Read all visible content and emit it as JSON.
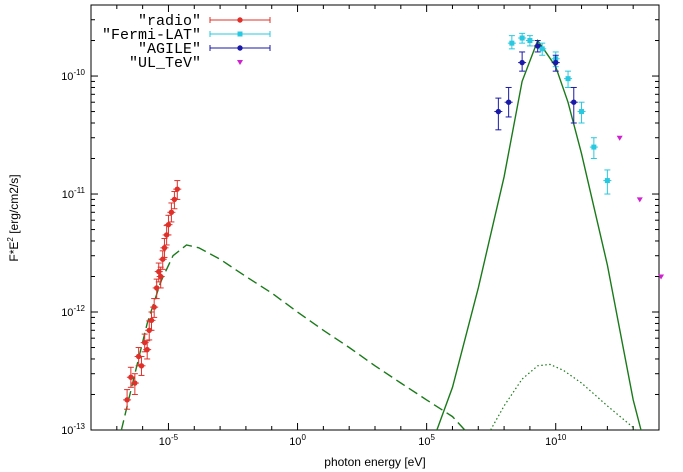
{
  "chart_data": {
    "type": "scatter",
    "xlabel": "photon energy [eV]",
    "ylabel": "F*E2 [erg/cm2/s]",
    "xscale": "log",
    "yscale": "log",
    "xlim": [
      1e-08,
      100000000000000.0
    ],
    "ylim": [
      1e-13,
      4e-10
    ],
    "xticks": [
      {
        "value": 1e-05,
        "base": "10",
        "exp": "-5"
      },
      {
        "value": 1,
        "base": "10",
        "exp": "0"
      },
      {
        "value": 100000.0,
        "base": "10",
        "exp": "5"
      },
      {
        "value": 10000000000.0,
        "base": "10",
        "exp": "10"
      }
    ],
    "yticks": [
      {
        "value": 1e-13,
        "base": "10",
        "exp": "-13"
      },
      {
        "value": 1e-12,
        "base": "10",
        "exp": "-12"
      },
      {
        "value": 1e-11,
        "base": "10",
        "exp": "-11"
      },
      {
        "value": 1e-10,
        "base": "10",
        "exp": "-10"
      }
    ],
    "legend_position": "top-left",
    "grid": false,
    "series": [
      {
        "name": "\"radio\"",
        "color": "#e0302a",
        "marker": "circle",
        "points": [
          {
            "x": 2.5e-07,
            "y": 1.8e-13,
            "yerr": [
              1.5e-13,
              2.2e-13
            ]
          },
          {
            "x": 3.5e-07,
            "y": 2.8e-13,
            "yerr": [
              2.3e-13,
              3.4e-13
            ]
          },
          {
            "x": 5e-07,
            "y": 2.5e-13,
            "yerr": [
              2e-13,
              3e-13
            ]
          },
          {
            "x": 7e-07,
            "y": 4.2e-13,
            "yerr": [
              3.5e-13,
              5e-13
            ]
          },
          {
            "x": 9e-07,
            "y": 3.5e-13,
            "yerr": [
              2.9e-13,
              4.2e-13
            ]
          },
          {
            "x": 1.2e-06,
            "y": 5.5e-13,
            "yerr": [
              4.6e-13,
              6.5e-13
            ]
          },
          {
            "x": 1.5e-06,
            "y": 4.8e-13,
            "yerr": [
              4e-13,
              5.7e-13
            ]
          },
          {
            "x": 1.8e-06,
            "y": 7e-13,
            "yerr": [
              5.8e-13,
              8.4e-13
            ]
          },
          {
            "x": 2.2e-06,
            "y": 8.5e-13,
            "yerr": [
              7e-13,
              1e-12
            ]
          },
          {
            "x": 2.8e-06,
            "y": 1.1e-12,
            "yerr": [
              9e-13,
              1.3e-12
            ]
          },
          {
            "x": 3.5e-06,
            "y": 1.6e-12,
            "yerr": [
              1.3e-12,
              1.9e-12
            ]
          },
          {
            "x": 4.2e-06,
            "y": 2.2e-12,
            "yerr": [
              1.8e-12,
              2.6e-12
            ]
          },
          {
            "x": 5e-06,
            "y": 2e-12,
            "yerr": [
              1.6e-12,
              2.4e-12
            ]
          },
          {
            "x": 6e-06,
            "y": 2.8e-12,
            "yerr": [
              2.3e-12,
              3.3e-12
            ]
          },
          {
            "x": 7e-06,
            "y": 3.5e-12,
            "yerr": [
              2.9e-12,
              4.2e-12
            ]
          },
          {
            "x": 8.5e-06,
            "y": 4.5e-12,
            "yerr": [
              3.7e-12,
              5.4e-12
            ]
          },
          {
            "x": 1e-05,
            "y": 5.5e-12,
            "yerr": [
              4.5e-12,
              6.6e-12
            ]
          },
          {
            "x": 1.3e-05,
            "y": 7e-12,
            "yerr": [
              5.8e-12,
              8.4e-12
            ]
          },
          {
            "x": 1.7e-05,
            "y": 9e-12,
            "yerr": [
              7.5e-12,
              1.05e-11
            ]
          },
          {
            "x": 2.2e-05,
            "y": 1.1e-11,
            "yerr": [
              9e-12,
              1.3e-11
            ]
          }
        ]
      },
      {
        "name": "\"Fermi-LAT\"",
        "color": "#28c8e0",
        "marker": "square",
        "points": [
          {
            "x": 200000000.0,
            "y": 1.9e-10,
            "yerr": [
              1.7e-10,
              2.2e-10
            ]
          },
          {
            "x": 500000000.0,
            "y": 2.1e-10,
            "yerr": [
              1.9e-10,
              2.3e-10
            ]
          },
          {
            "x": 1000000000.0,
            "y": 2e-10,
            "yerr": [
              1.8e-10,
              2.2e-10
            ]
          },
          {
            "x": 3000000000.0,
            "y": 1.7e-10,
            "yerr": [
              1.5e-10,
              1.9e-10
            ]
          },
          {
            "x": 10000000000.0,
            "y": 1.4e-10,
            "yerr": [
              1.2e-10,
              1.6e-10
            ]
          },
          {
            "x": 30000000000.0,
            "y": 9.5e-11,
            "yerr": [
              8e-11,
              1.1e-10
            ]
          },
          {
            "x": 100000000000.0,
            "y": 5e-11,
            "yerr": [
              4e-11,
              6e-11
            ]
          },
          {
            "x": 300000000000.0,
            "y": 2.5e-11,
            "yerr": [
              2e-11,
              3e-11
            ]
          },
          {
            "x": 1000000000000.0,
            "y": 1.3e-11,
            "yerr": [
              1e-11,
              1.6e-11
            ]
          }
        ]
      },
      {
        "name": "\"AGILE\"",
        "color": "#1a1aa8",
        "marker": "circle",
        "points": [
          {
            "x": 60000000.0,
            "y": 5e-11,
            "yerr": [
              3.5e-11,
              6.5e-11
            ]
          },
          {
            "x": 150000000.0,
            "y": 6e-11,
            "yerr": [
              4.5e-11,
              8e-11
            ]
          },
          {
            "x": 500000000.0,
            "y": 1.3e-10,
            "yerr": [
              1.1e-10,
              1.6e-10
            ]
          },
          {
            "x": 2000000000.0,
            "y": 1.8e-10,
            "yerr": [
              1.6e-10,
              2e-10
            ]
          },
          {
            "x": 10000000000.0,
            "y": 1.3e-10,
            "yerr": [
              1.1e-10,
              1.5e-10
            ]
          },
          {
            "x": 50000000000.0,
            "y": 6e-11,
            "yerr": [
              4e-11,
              8e-11
            ]
          }
        ]
      },
      {
        "name": "\"UL_TeV\"",
        "color": "#d020d0",
        "marker": "triangle-down",
        "points": [
          {
            "x": 3000000000000.0,
            "y": 3e-11
          },
          {
            "x": 18000000000000.0,
            "y": 9e-12
          },
          {
            "x": 120000000000000.0,
            "y": 2e-12
          }
        ]
      }
    ],
    "curves": [
      {
        "style": "long-dash",
        "color": "#1a7a1a",
        "points": [
          [
            1.5e-07,
            1e-13
          ],
          [
            5e-07,
            3e-13
          ],
          [
            1.5e-06,
            8e-13
          ],
          [
            5e-06,
            1.8e-12
          ],
          [
            1.5e-05,
            3e-12
          ],
          [
            5e-05,
            3.7e-12
          ],
          [
            0.00015,
            3.5e-12
          ],
          [
            0.001,
            2.8e-12
          ],
          [
            0.01,
            2e-12
          ],
          [
            0.1,
            1.45e-12
          ],
          [
            1,
            1e-12
          ],
          [
            10,
            7e-13
          ],
          [
            100,
            5e-13
          ],
          [
            1000.0,
            3.5e-13
          ],
          [
            10000.0,
            2.5e-13
          ],
          [
            100000.0,
            1.8e-13
          ],
          [
            1000000.0,
            1.3e-13
          ],
          [
            3000000.0,
            1e-13
          ]
        ]
      },
      {
        "style": "solid",
        "color": "#1a7a1a",
        "points": [
          [
            250000.0,
            1e-13
          ],
          [
            1000000.0,
            2.3e-13
          ],
          [
            10000000.0,
            1.6e-12
          ],
          [
            100000000.0,
            1.4e-11
          ],
          [
            500000000.0,
            9e-11
          ],
          [
            2000000000.0,
            2e-10
          ],
          [
            5000000000.0,
            1.5e-10
          ],
          [
            10000000000.0,
            1.2e-10
          ],
          [
            30000000000.0,
            6e-11
          ],
          [
            100000000000.0,
            2.2e-11
          ],
          [
            1000000000000.0,
            2.5e-12
          ],
          [
            10000000000000.0,
            1.8e-13
          ],
          [
            20000000000000.0,
            1e-13
          ]
        ]
      },
      {
        "style": "dotted",
        "color": "#1a7a1a",
        "points": [
          [
            30000000.0,
            1e-13
          ],
          [
            100000000.0,
            1.6e-13
          ],
          [
            500000000.0,
            2.7e-13
          ],
          [
            2000000000.0,
            3.5e-13
          ],
          [
            6000000000.0,
            3.6e-13
          ],
          [
            20000000000.0,
            3.2e-13
          ],
          [
            100000000000.0,
            2.5e-13
          ],
          [
            1000000000000.0,
            1.6e-13
          ],
          [
            10000000000000.0,
            1.05e-13
          ],
          [
            12000000000000.0,
            1e-13
          ]
        ]
      }
    ]
  }
}
